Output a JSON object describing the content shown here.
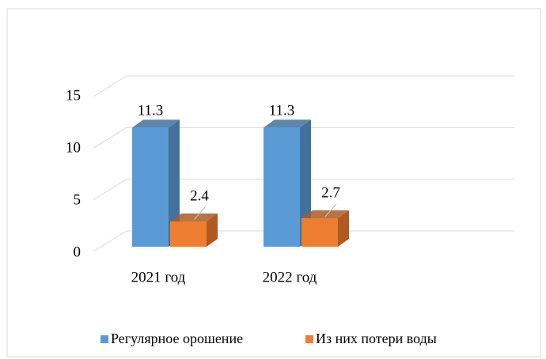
{
  "chart_data": {
    "type": "bar3d",
    "categories": [
      "2021 год",
      "2022 год"
    ],
    "series": [
      {
        "name": "Регулярное орошение",
        "color": "#5b9bd5",
        "side": "#41719c",
        "values": [
          11.3,
          11.3
        ]
      },
      {
        "name": "Из них потери воды",
        "color": "#ed7d31",
        "side": "#ae5a21",
        "values": [
          2.4,
          2.7
        ]
      }
    ],
    "ylim": [
      0,
      15
    ],
    "yticks": [
      0,
      5,
      10,
      15
    ],
    "grid": true,
    "legend": "bottom"
  }
}
